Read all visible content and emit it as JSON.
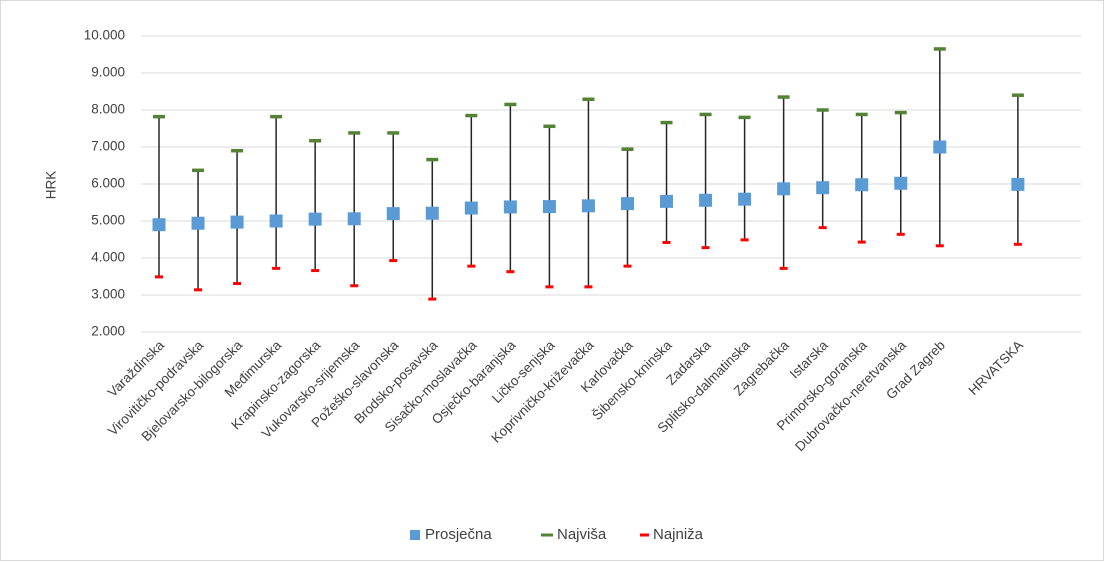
{
  "chart_data": {
    "type": "high-low-average",
    "ylabel": "HRK",
    "ylim": [
      2000,
      10000
    ],
    "yticks": [
      2000,
      3000,
      4000,
      5000,
      6000,
      7000,
      8000,
      9000,
      10000
    ],
    "ytick_labels": [
      "2.000",
      "3.000",
      "4.000",
      "5.000",
      "6.000",
      "7.000",
      "8.000",
      "9.000",
      "10.000"
    ],
    "grid": true,
    "legend_position": "bottom",
    "categories": [
      "Varaždinska",
      "Virovitičko-podravska",
      "Bjelovarsko-bilogorska",
      "Međimurska",
      "Krapinsko-zagorska",
      "Vukovarsko-srijemska",
      "Požeško-slavonska",
      "Brodsko-posavska",
      "Sisačko-moslavačka",
      "Osječko-baranjska",
      "Ličko-senjska",
      "Koprivničko-križevačka",
      "Karlovačka",
      "Šibensko-kninska",
      "Zadarska",
      "Splitsko-dalmatinska",
      "Zagrebačka",
      "Istarska",
      "Primorsko-goranska",
      "Dubrovačko-neretvanska",
      "Grad Zagreb",
      "",
      "HRVATSKA"
    ],
    "series": [
      {
        "name": "Prosječna",
        "color": "#5b9bd5",
        "marker": "square",
        "values": [
          4900,
          4940,
          4970,
          5000,
          5050,
          5060,
          5200,
          5210,
          5350,
          5380,
          5390,
          5410,
          5470,
          5530,
          5560,
          5590,
          5870,
          5900,
          5980,
          6020,
          7000,
          null,
          5990
        ]
      },
      {
        "name": "Najviša",
        "color": "#548235",
        "marker": "dash",
        "values": [
          7820,
          6370,
          6900,
          7820,
          7170,
          7380,
          7380,
          6660,
          7850,
          8150,
          7560,
          8290,
          6940,
          7660,
          7880,
          7800,
          8350,
          8000,
          7880,
          7930,
          9650,
          null,
          8400
        ]
      },
      {
        "name": "Najniža",
        "color": "#ff0000",
        "marker": "dash",
        "values": [
          3490,
          3140,
          3310,
          3720,
          3660,
          3250,
          3930,
          2890,
          3780,
          3630,
          3220,
          3220,
          3780,
          4420,
          4280,
          4490,
          3720,
          4820,
          4430,
          4640,
          4330,
          null,
          4370
        ]
      }
    ]
  }
}
